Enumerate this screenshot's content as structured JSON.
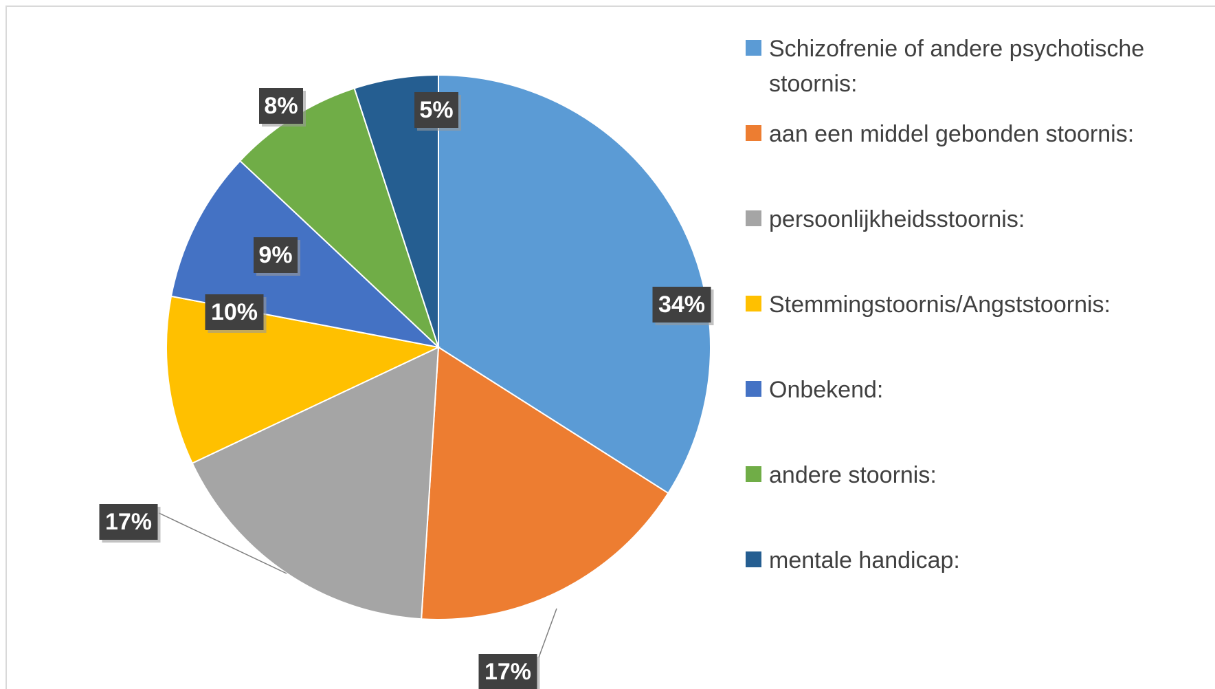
{
  "chart_data": {
    "type": "pie",
    "categories": [
      "Schizofrenie of andere psychotische stoornis:",
      "aan een middel gebonden stoornis:",
      "persoonlijkheidsstoornis:",
      "Stemmingstoornis/Angststoornis:",
      "Onbekend:",
      "andere stoornis:",
      "mentale handicap:"
    ],
    "values": [
      34,
      17,
      17,
      10,
      9,
      8,
      5
    ],
    "value_labels": [
      "34%",
      "17%",
      "17%",
      "10%",
      "9%",
      "8%",
      "5%"
    ],
    "colors": [
      "#5b9bd5",
      "#ed7d31",
      "#a5a5a5",
      "#ffc000",
      "#4472c4",
      "#70ad47",
      "#255e91"
    ],
    "legend": "right"
  }
}
